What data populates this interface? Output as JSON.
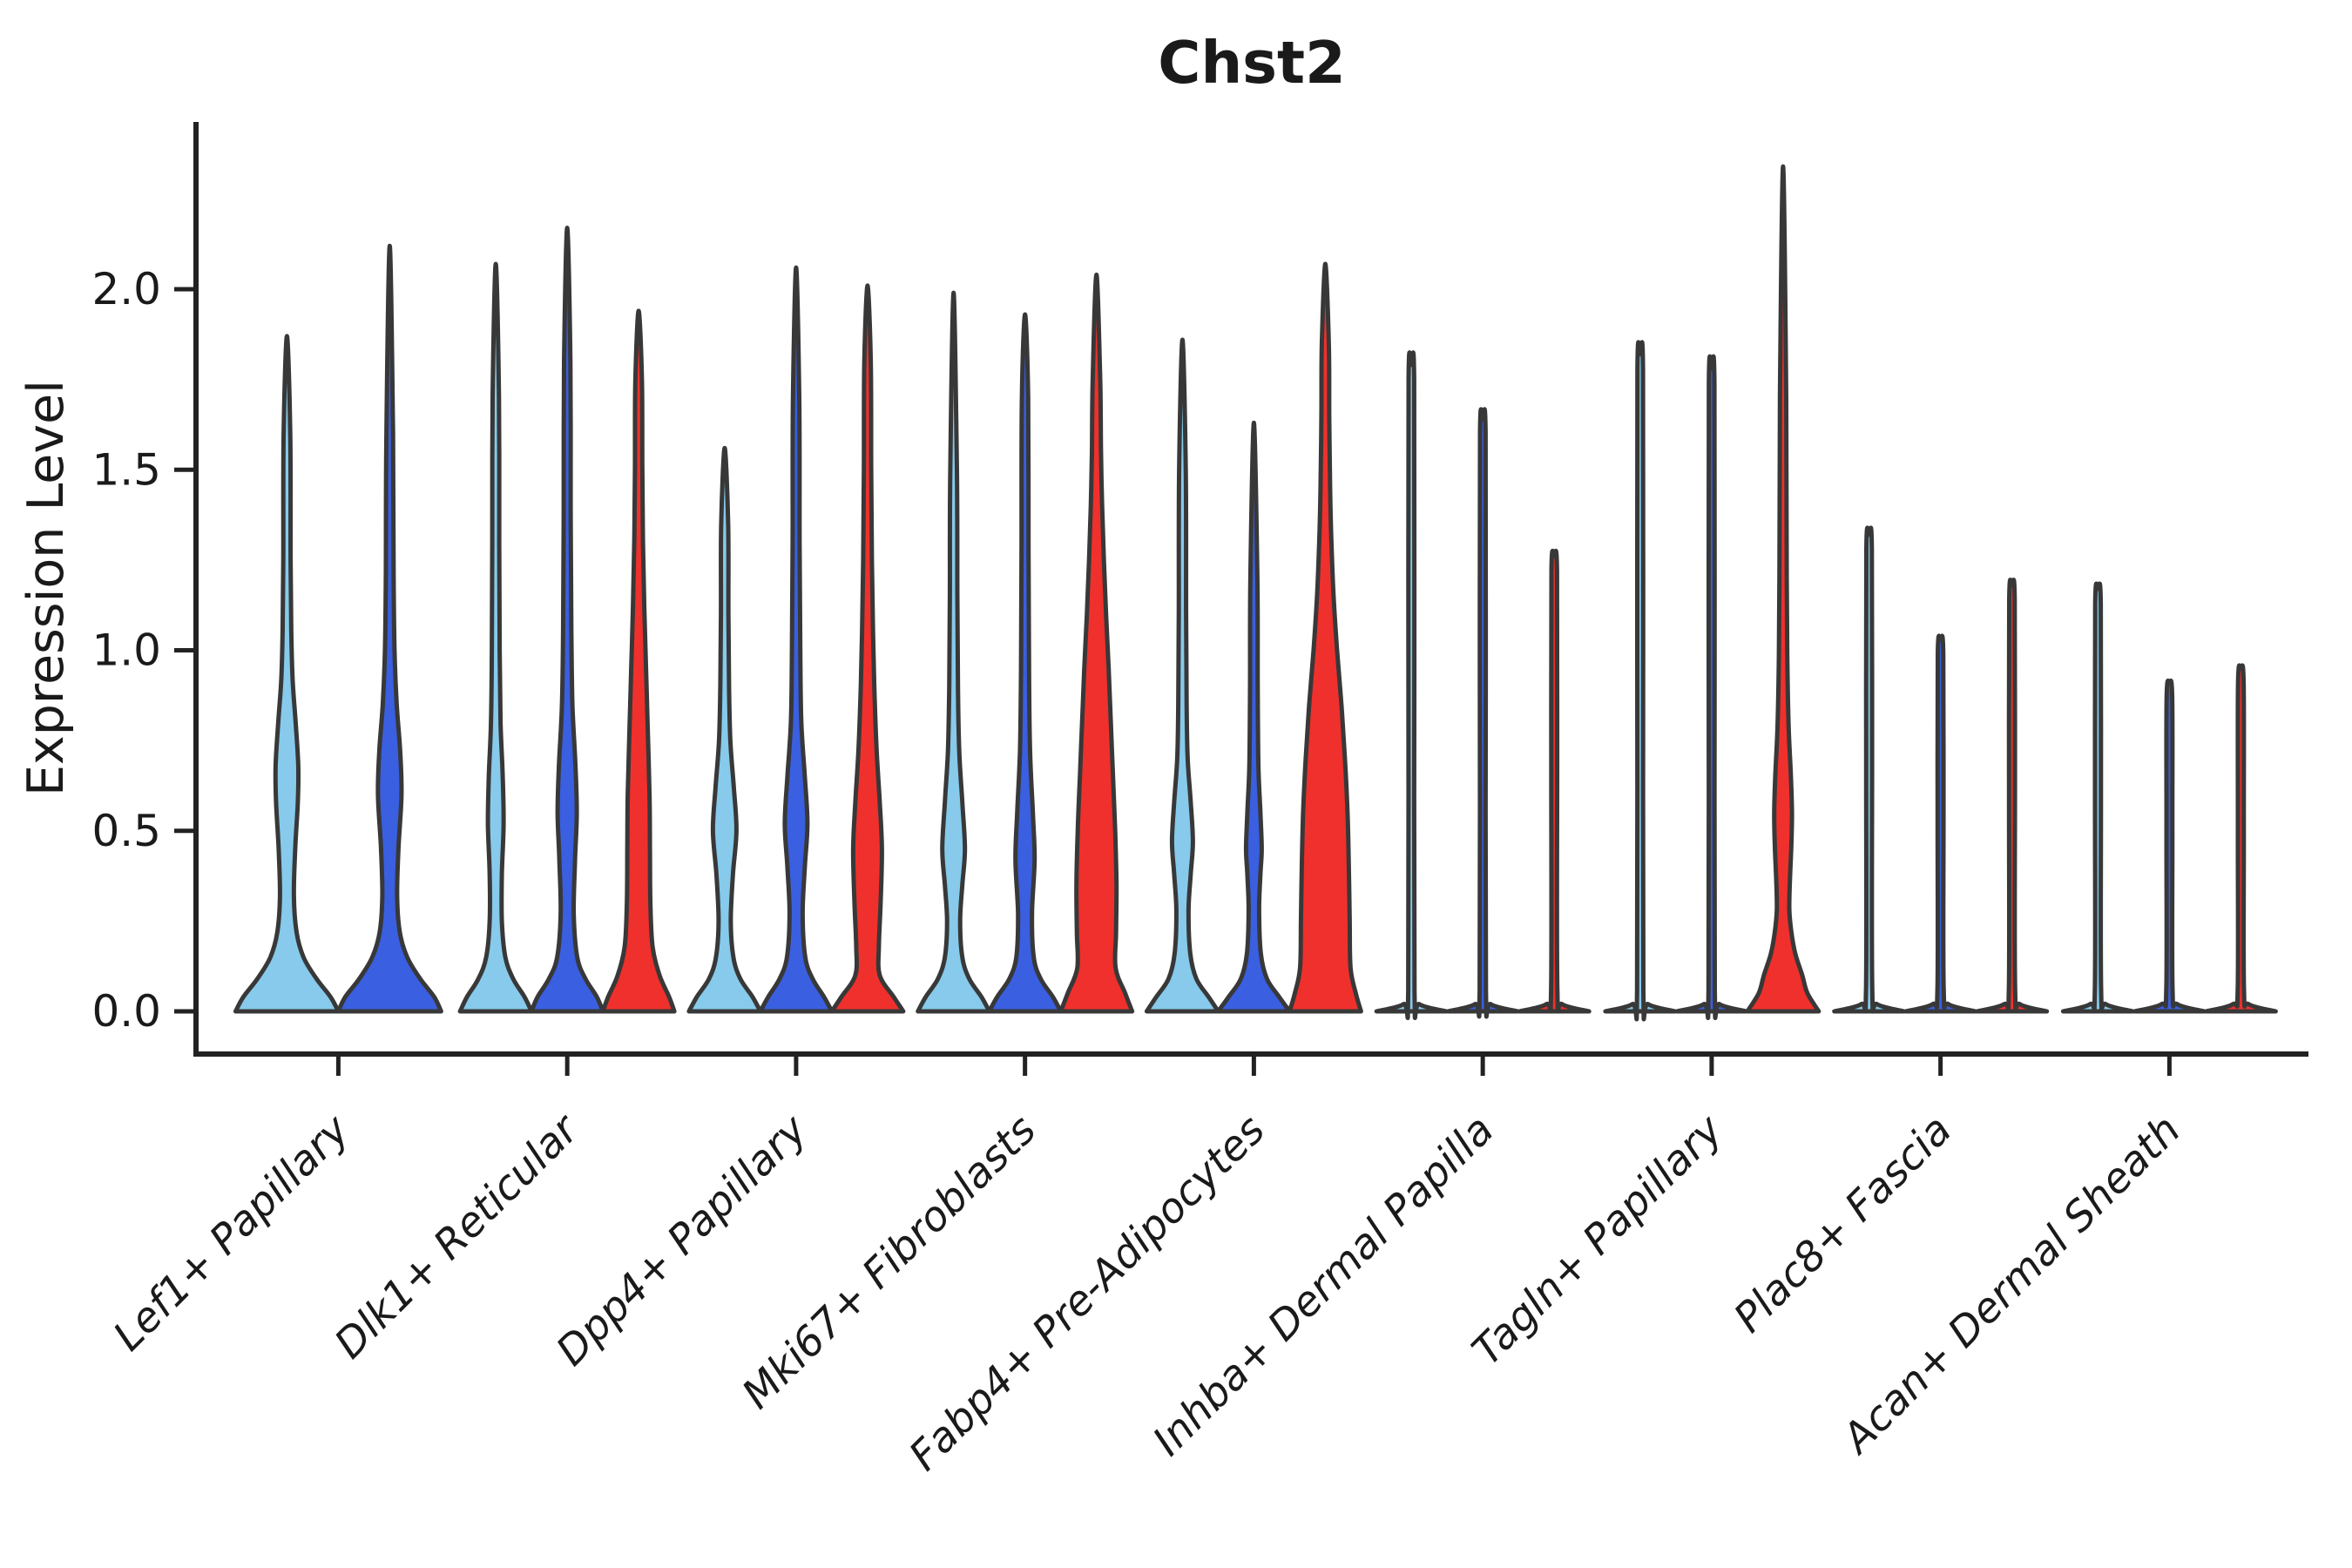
{
  "chart_data": {
    "type": "violin",
    "title": "Chst2",
    "ylabel": "Expression Level",
    "xlabel": "",
    "grid": false,
    "legend": "none",
    "ylim": [
      -0.12,
      2.46
    ],
    "yticks": [
      0,
      0.5,
      1.0,
      1.5,
      2.0
    ],
    "ytick_labels": [
      "0.0",
      "0.5",
      "1.0",
      "1.5",
      "2.0"
    ],
    "categories": [
      "Lef1+ Papillary",
      "Dlk1+ Reticular",
      "Dpp4+ Papillary",
      "Mki67+ Fibroblasts",
      "Fabp4+ Pre-Adipocytes",
      "Inhba+ Dermal Papilla",
      "Tagln+ Papillary",
      "Plac8+ Fascia",
      "Acan+ Dermal Sheath"
    ],
    "split_order": [
      "light_blue",
      "dark_blue",
      "red"
    ],
    "split_colors": {
      "light_blue": "#87CAEB",
      "dark_blue": "#3A5FE0",
      "red": "#F0302C"
    },
    "outline_color": "#383838",
    "axis_color": "#222222",
    "violins": [
      {
        "cat": 0,
        "split": "light_blue",
        "peak": 1.87,
        "profile": [
          [
            0,
            59
          ],
          [
            0.04,
            50
          ],
          [
            0.09,
            34
          ],
          [
            0.15,
            19
          ],
          [
            0.22,
            11
          ],
          [
            0.32,
            8
          ],
          [
            0.45,
            9.5
          ],
          [
            0.58,
            12.5
          ],
          [
            0.68,
            13
          ],
          [
            0.8,
            10
          ],
          [
            0.92,
            6.5
          ],
          [
            1.05,
            5
          ],
          [
            1.25,
            4.2
          ],
          [
            1.6,
            3.8
          ],
          [
            1.87,
            0
          ]
        ]
      },
      {
        "cat": 0,
        "split": "dark_blue",
        "peak": 2.12,
        "profile": [
          [
            0,
            59
          ],
          [
            0.04,
            51
          ],
          [
            0.09,
            35
          ],
          [
            0.15,
            20
          ],
          [
            0.22,
            11.5
          ],
          [
            0.32,
            8.5
          ],
          [
            0.45,
            10
          ],
          [
            0.6,
            13.5
          ],
          [
            0.72,
            12
          ],
          [
            0.85,
            8
          ],
          [
            1.0,
            5.5
          ],
          [
            1.2,
            4.5
          ],
          [
            1.6,
            3.8
          ],
          [
            2.12,
            0
          ]
        ]
      },
      {
        "cat": 1,
        "split": "light_blue",
        "peak": 2.07,
        "profile": [
          [
            0,
            41
          ],
          [
            0.04,
            33
          ],
          [
            0.09,
            20
          ],
          [
            0.15,
            11
          ],
          [
            0.25,
            7
          ],
          [
            0.38,
            7
          ],
          [
            0.52,
            9
          ],
          [
            0.65,
            8
          ],
          [
            0.8,
            5.5
          ],
          [
            1.0,
            4.5
          ],
          [
            1.3,
            4
          ],
          [
            1.7,
            3.6
          ],
          [
            2.07,
            0
          ]
        ]
      },
      {
        "cat": 1,
        "split": "dark_blue",
        "peak": 2.17,
        "profile": [
          [
            0,
            41
          ],
          [
            0.04,
            34
          ],
          [
            0.09,
            21
          ],
          [
            0.15,
            11.5
          ],
          [
            0.27,
            7.5
          ],
          [
            0.42,
            9
          ],
          [
            0.55,
            11
          ],
          [
            0.68,
            9.5
          ],
          [
            0.85,
            6
          ],
          [
            1.05,
            4.8
          ],
          [
            1.4,
            4
          ],
          [
            1.8,
            3.6
          ],
          [
            2.17,
            0
          ]
        ]
      },
      {
        "cat": 1,
        "split": "red",
        "peak": 1.94,
        "profile": [
          [
            0,
            41
          ],
          [
            0.04,
            35
          ],
          [
            0.1,
            24
          ],
          [
            0.18,
            16
          ],
          [
            0.3,
            13.5
          ],
          [
            0.45,
            13
          ],
          [
            0.6,
            12.5
          ],
          [
            0.78,
            10.5
          ],
          [
            0.95,
            8.5
          ],
          [
            1.12,
            6.5
          ],
          [
            1.3,
            5
          ],
          [
            1.5,
            4.2
          ],
          [
            1.75,
            3.8
          ],
          [
            1.94,
            0
          ]
        ]
      },
      {
        "cat": 2,
        "split": "light_blue",
        "peak": 1.56,
        "profile": [
          [
            0,
            41
          ],
          [
            0.04,
            32
          ],
          [
            0.09,
            18
          ],
          [
            0.15,
            10
          ],
          [
            0.25,
            7
          ],
          [
            0.38,
            9.5
          ],
          [
            0.5,
            13.5
          ],
          [
            0.62,
            10.5
          ],
          [
            0.75,
            6.5
          ],
          [
            0.9,
            5
          ],
          [
            1.1,
            4.3
          ],
          [
            1.35,
            4
          ],
          [
            1.56,
            0
          ]
        ]
      },
      {
        "cat": 2,
        "split": "dark_blue",
        "peak": 2.06,
        "profile": [
          [
            0,
            41
          ],
          [
            0.04,
            32
          ],
          [
            0.09,
            19
          ],
          [
            0.15,
            10.5
          ],
          [
            0.27,
            7.5
          ],
          [
            0.4,
            10
          ],
          [
            0.52,
            13
          ],
          [
            0.65,
            10
          ],
          [
            0.8,
            6
          ],
          [
            1.0,
            4.8
          ],
          [
            1.3,
            4
          ],
          [
            1.7,
            3.6
          ],
          [
            2.06,
            0
          ]
        ]
      },
      {
        "cat": 2,
        "split": "red",
        "peak": 2.01,
        "profile": [
          [
            0,
            41
          ],
          [
            0.04,
            30
          ],
          [
            0.1,
            14
          ],
          [
            0.18,
            13
          ],
          [
            0.3,
            15
          ],
          [
            0.45,
            16.5
          ],
          [
            0.58,
            14
          ],
          [
            0.72,
            10.5
          ],
          [
            0.88,
            8
          ],
          [
            1.05,
            6.3
          ],
          [
            1.25,
            5
          ],
          [
            1.5,
            4.2
          ],
          [
            1.8,
            3.7
          ],
          [
            2.01,
            0
          ]
        ]
      },
      {
        "cat": 3,
        "split": "light_blue",
        "peak": 1.99,
        "profile": [
          [
            0,
            41
          ],
          [
            0.04,
            32
          ],
          [
            0.09,
            18
          ],
          [
            0.15,
            10
          ],
          [
            0.25,
            7.5
          ],
          [
            0.35,
            10
          ],
          [
            0.45,
            13
          ],
          [
            0.58,
            10
          ],
          [
            0.72,
            6.5
          ],
          [
            0.9,
            5
          ],
          [
            1.15,
            4.3
          ],
          [
            1.5,
            3.8
          ],
          [
            1.99,
            0
          ]
        ]
      },
      {
        "cat": 3,
        "split": "dark_blue",
        "peak": 1.93,
        "profile": [
          [
            0,
            41
          ],
          [
            0.04,
            32
          ],
          [
            0.09,
            18
          ],
          [
            0.15,
            10
          ],
          [
            0.27,
            8
          ],
          [
            0.42,
            11
          ],
          [
            0.55,
            9
          ],
          [
            0.72,
            5.8
          ],
          [
            0.95,
            4.6
          ],
          [
            1.3,
            4
          ],
          [
            1.7,
            3.6
          ],
          [
            1.93,
            0
          ]
        ]
      },
      {
        "cat": 3,
        "split": "red",
        "peak": 2.04,
        "profile": [
          [
            0,
            41
          ],
          [
            0.05,
            33
          ],
          [
            0.12,
            22
          ],
          [
            0.22,
            22.5
          ],
          [
            0.35,
            23
          ],
          [
            0.5,
            21.5
          ],
          [
            0.65,
            19
          ],
          [
            0.8,
            16.5
          ],
          [
            0.95,
            14
          ],
          [
            1.1,
            11
          ],
          [
            1.25,
            8.5
          ],
          [
            1.4,
            6.5
          ],
          [
            1.55,
            5.2
          ],
          [
            1.75,
            4.3
          ],
          [
            2.04,
            0
          ]
        ]
      },
      {
        "cat": 4,
        "split": "light_blue",
        "peak": 1.86,
        "profile": [
          [
            0,
            41
          ],
          [
            0.04,
            30
          ],
          [
            0.09,
            16
          ],
          [
            0.16,
            9
          ],
          [
            0.28,
            7
          ],
          [
            0.38,
            9.5
          ],
          [
            0.47,
            12
          ],
          [
            0.58,
            9.5
          ],
          [
            0.7,
            6
          ],
          [
            0.85,
            4.8
          ],
          [
            1.1,
            4.2
          ],
          [
            1.5,
            3.8
          ],
          [
            1.86,
            0
          ]
        ]
      },
      {
        "cat": 4,
        "split": "dark_blue",
        "peak": 1.63,
        "profile": [
          [
            0,
            41
          ],
          [
            0.04,
            29
          ],
          [
            0.09,
            15
          ],
          [
            0.16,
            8
          ],
          [
            0.28,
            6
          ],
          [
            0.38,
            7.5
          ],
          [
            0.45,
            9
          ],
          [
            0.55,
            7.5
          ],
          [
            0.68,
            5.2
          ],
          [
            0.9,
            4.4
          ],
          [
            1.2,
            4
          ],
          [
            1.63,
            0
          ]
        ]
      },
      {
        "cat": 4,
        "split": "red",
        "peak": 2.07,
        "profile": [
          [
            0,
            41
          ],
          [
            0.05,
            35
          ],
          [
            0.12,
            29
          ],
          [
            0.25,
            28
          ],
          [
            0.4,
            27
          ],
          [
            0.55,
            25.5
          ],
          [
            0.7,
            22.5
          ],
          [
            0.85,
            18.5
          ],
          [
            1.0,
            13.5
          ],
          [
            1.15,
            9.5
          ],
          [
            1.3,
            7
          ],
          [
            1.45,
            5.5
          ],
          [
            1.65,
            4.5
          ],
          [
            1.85,
            4
          ],
          [
            2.07,
            0
          ]
        ]
      },
      {
        "cat": 5,
        "split": "light_blue",
        "peak": 1.79,
        "profile": [
          [
            0,
            40
          ],
          [
            0.02,
            9
          ],
          [
            0.06,
            3.6
          ],
          [
            0.95,
            3.4
          ],
          [
            1.75,
            3.2
          ],
          [
            1.79,
            0
          ]
        ]
      },
      {
        "cat": 5,
        "split": "dark_blue",
        "peak": 1.64,
        "profile": [
          [
            0,
            40
          ],
          [
            0.02,
            9
          ],
          [
            0.06,
            3.6
          ],
          [
            0.9,
            3.4
          ],
          [
            1.6,
            3.2
          ],
          [
            1.64,
            0
          ]
        ]
      },
      {
        "cat": 5,
        "split": "red",
        "peak": 1.26,
        "profile": [
          [
            0,
            40
          ],
          [
            0.02,
            9
          ],
          [
            0.06,
            3.6
          ],
          [
            0.7,
            3.4
          ],
          [
            1.22,
            3.2
          ],
          [
            1.26,
            0
          ]
        ]
      },
      {
        "cat": 6,
        "split": "light_blue",
        "peak": 1.82,
        "profile": [
          [
            0,
            40
          ],
          [
            0.02,
            9
          ],
          [
            0.06,
            3.6
          ],
          [
            1.0,
            3.4
          ],
          [
            1.78,
            3.2
          ],
          [
            1.82,
            0
          ]
        ]
      },
      {
        "cat": 6,
        "split": "dark_blue",
        "peak": 1.78,
        "profile": [
          [
            0,
            40
          ],
          [
            0.02,
            9
          ],
          [
            0.06,
            3.6
          ],
          [
            0.95,
            3.4
          ],
          [
            1.74,
            3.2
          ],
          [
            1.78,
            0
          ]
        ]
      },
      {
        "cat": 6,
        "split": "red",
        "peak": 2.34,
        "profile": [
          [
            0,
            41
          ],
          [
            0.05,
            28
          ],
          [
            0.1,
            22
          ],
          [
            0.16,
            14
          ],
          [
            0.22,
            9.5
          ],
          [
            0.28,
            7.2
          ],
          [
            0.36,
            7.8
          ],
          [
            0.46,
            9.5
          ],
          [
            0.55,
            10.2
          ],
          [
            0.65,
            9
          ],
          [
            0.78,
            6.5
          ],
          [
            0.95,
            5
          ],
          [
            1.2,
            4.2
          ],
          [
            1.7,
            3.6
          ],
          [
            2.34,
            0
          ]
        ]
      },
      {
        "cat": 7,
        "split": "light_blue",
        "peak": 1.32,
        "profile": [
          [
            0,
            40
          ],
          [
            0.02,
            9
          ],
          [
            0.06,
            3.6
          ],
          [
            0.7,
            3.4
          ],
          [
            1.28,
            3.2
          ],
          [
            1.32,
            0
          ]
        ]
      },
      {
        "cat": 7,
        "split": "dark_blue",
        "peak": 1.03,
        "profile": [
          [
            0,
            40
          ],
          [
            0.02,
            9
          ],
          [
            0.06,
            3.6
          ],
          [
            0.55,
            3.4
          ],
          [
            0.99,
            3.2
          ],
          [
            1.03,
            0
          ]
        ]
      },
      {
        "cat": 7,
        "split": "red",
        "peak": 1.18,
        "profile": [
          [
            0,
            40
          ],
          [
            0.02,
            9
          ],
          [
            0.06,
            3.6
          ],
          [
            0.62,
            3.4
          ],
          [
            1.14,
            3.2
          ],
          [
            1.18,
            0
          ]
        ]
      },
      {
        "cat": 8,
        "split": "light_blue",
        "peak": 1.17,
        "profile": [
          [
            0,
            40
          ],
          [
            0.02,
            9
          ],
          [
            0.06,
            3.6
          ],
          [
            0.62,
            3.4
          ],
          [
            1.13,
            3.2
          ],
          [
            1.17,
            0
          ]
        ]
      },
      {
        "cat": 8,
        "split": "dark_blue",
        "peak": 0.91,
        "profile": [
          [
            0,
            40
          ],
          [
            0.02,
            9
          ],
          [
            0.06,
            3.6
          ],
          [
            0.5,
            3.4
          ],
          [
            0.87,
            3.2
          ],
          [
            0.91,
            0
          ]
        ]
      },
      {
        "cat": 8,
        "split": "red",
        "peak": 0.95,
        "profile": [
          [
            0,
            40
          ],
          [
            0.02,
            9
          ],
          [
            0.06,
            3.6
          ],
          [
            0.5,
            3.4
          ],
          [
            0.91,
            3.2
          ],
          [
            0.95,
            0
          ]
        ]
      }
    ]
  }
}
